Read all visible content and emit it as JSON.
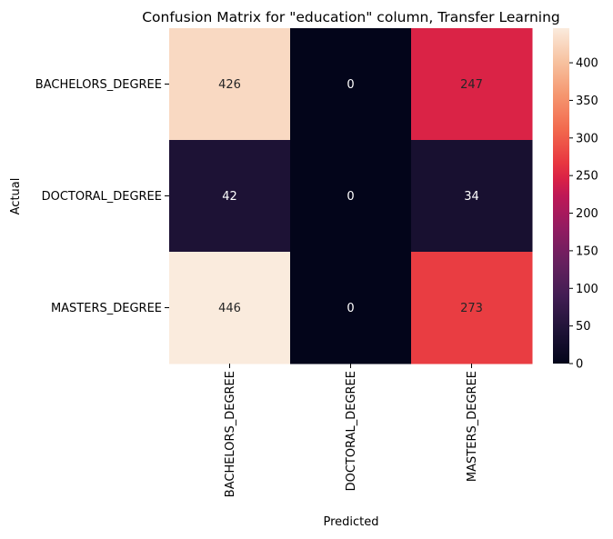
{
  "chart_data": {
    "type": "heatmap",
    "title": "Confusion Matrix for \"education\" column, Transfer Learning",
    "xlabel": "Predicted",
    "ylabel": "Actual",
    "x_categories": [
      "BACHELORS_DEGREE",
      "DOCTORAL_DEGREE",
      "MASTERS_DEGREE"
    ],
    "y_categories": [
      "BACHELORS_DEGREE",
      "DOCTORAL_DEGREE",
      "MASTERS_DEGREE"
    ],
    "values": [
      [
        426,
        0,
        247
      ],
      [
        42,
        0,
        34
      ],
      [
        446,
        0,
        273
      ]
    ],
    "colorbar": {
      "range": [
        0,
        446
      ],
      "ticks": [
        0,
        50,
        100,
        150,
        200,
        250,
        300,
        350,
        400
      ],
      "colormap": "rocket"
    }
  }
}
